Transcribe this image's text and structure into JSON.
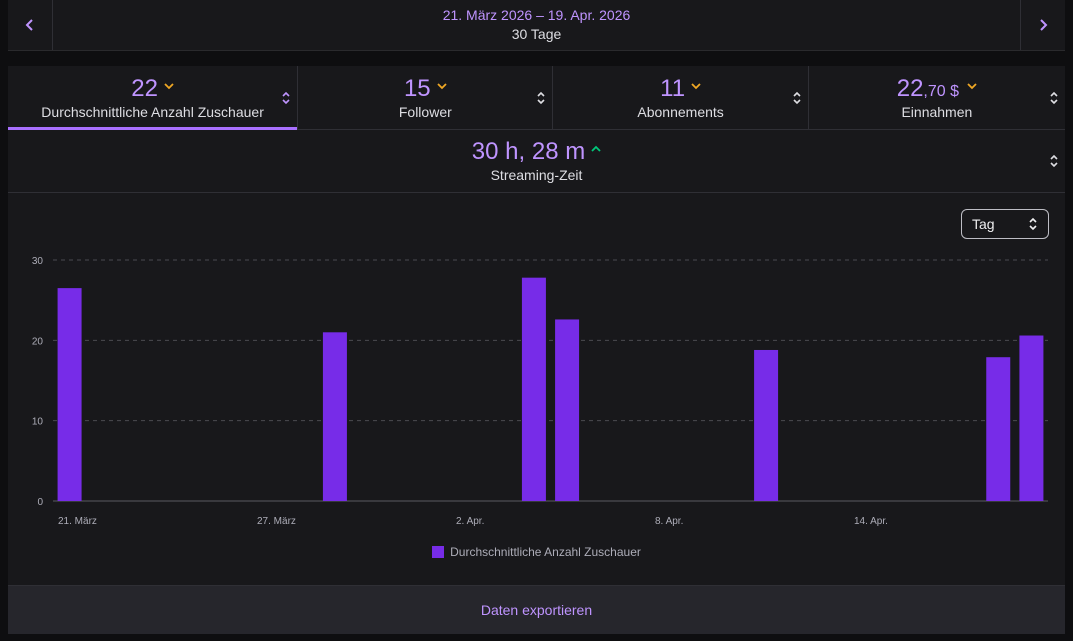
{
  "header": {
    "date_range": "21. März 2026 – 19. Apr. 2026",
    "duration": "30 Tage",
    "prev_icon": "chevron-left-icon",
    "next_icon": "chevron-right-icon"
  },
  "metrics": [
    {
      "value": "22",
      "label": "Durchschnittliche Anzahl Zuschauer",
      "trend": "down",
      "active": true
    },
    {
      "value": "15",
      "label": "Follower",
      "trend": "down",
      "active": false
    },
    {
      "value": "11",
      "label": "Abonnements",
      "trend": "down",
      "active": false
    },
    {
      "value": "22",
      "cents": ",70 $",
      "label": "Einnahmen",
      "trend": "down",
      "active": false
    }
  ],
  "streaming": {
    "value": "30 h, 28 m",
    "label": "Streaming-Zeit",
    "trend": "up"
  },
  "select": {
    "value": "Tag"
  },
  "chart_data": {
    "type": "bar",
    "x_tick_labels": [
      "21. März",
      "27. März",
      "2. Apr.",
      "8. Apr.",
      "14. Apr."
    ],
    "categories": [
      "21. März",
      "22. März",
      "23. März",
      "24. März",
      "25. März",
      "26. März",
      "27. März",
      "28. März",
      "29. März",
      "30. März",
      "31. März",
      "1. Apr.",
      "2. Apr.",
      "3. Apr.",
      "4. Apr.",
      "5. Apr.",
      "6. Apr.",
      "7. Apr.",
      "8. Apr.",
      "9. Apr.",
      "10. Apr.",
      "11. Apr.",
      "12. Apr.",
      "13. Apr.",
      "14. Apr.",
      "15. Apr.",
      "16. Apr.",
      "17. Apr.",
      "18. Apr.",
      "19. Apr."
    ],
    "series": [
      {
        "name": "Durchschnittliche Anzahl Zuschauer",
        "values": [
          26.5,
          0,
          0,
          0,
          0,
          0,
          0,
          0,
          21,
          0,
          0,
          0,
          0,
          0,
          27.8,
          22.6,
          0,
          0,
          0,
          0,
          0,
          18.8,
          0,
          0,
          0,
          0,
          0,
          0,
          17.9,
          20.6
        ]
      }
    ],
    "ylim": [
      0,
      30
    ],
    "y_ticks": [
      0,
      10,
      20,
      30
    ],
    "grid": true,
    "legend": "bottom-center",
    "color": "#772ce8"
  },
  "export": {
    "label": "Daten exportieren"
  }
}
